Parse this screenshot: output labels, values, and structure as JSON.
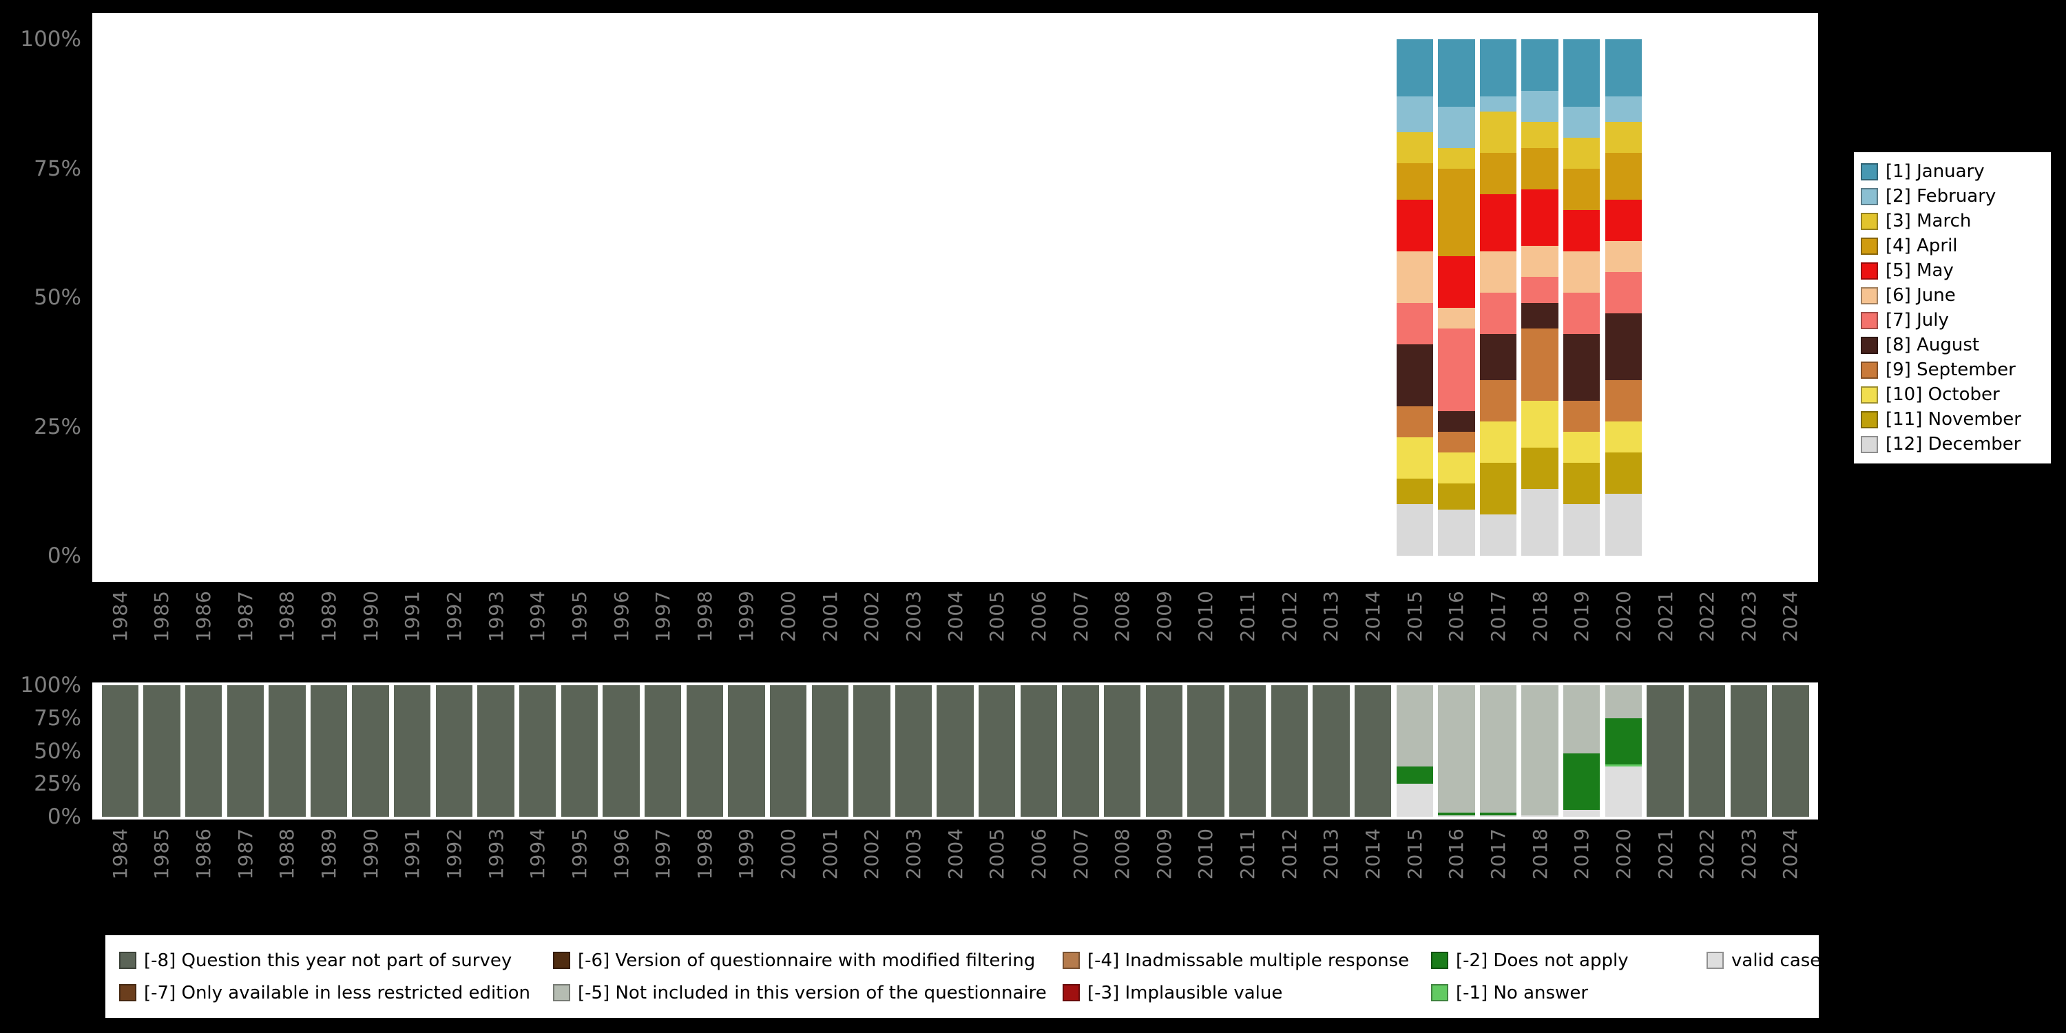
{
  "styles": {
    "background": "#000000",
    "panel_background": "#ffffff",
    "axis_text_color": "#7e7e7e",
    "legend_text_color": "#000000"
  },
  "chart_data": [
    {
      "type": "bar",
      "subtype": "stacked_percent",
      "title": "",
      "xlabel": "",
      "ylabel": "",
      "ylim": [
        0,
        100
      ],
      "grid": false,
      "legend_position": "right",
      "x_years": [
        1984,
        1985,
        1986,
        1987,
        1988,
        1989,
        1990,
        1991,
        1992,
        1993,
        1994,
        1995,
        1996,
        1997,
        1998,
        1999,
        2000,
        2001,
        2002,
        2003,
        2004,
        2005,
        2006,
        2007,
        2008,
        2009,
        2010,
        2011,
        2012,
        2013,
        2014,
        2015,
        2016,
        2017,
        2018,
        2019,
        2020,
        2021,
        2022,
        2023,
        2024
      ],
      "y_ticks": [
        {
          "label": "0%",
          "value": 0
        },
        {
          "label": "25%",
          "value": 25
        },
        {
          "label": "50%",
          "value": 50
        },
        {
          "label": "75%",
          "value": 75
        },
        {
          "label": "100%",
          "value": 100
        }
      ],
      "series": [
        {
          "name": "[1] January",
          "color": "#4798b2",
          "values_by_year": {
            "2015": 11,
            "2016": 13,
            "2017": 11,
            "2018": 10,
            "2019": 13,
            "2020": 11
          }
        },
        {
          "name": "[2] February",
          "color": "#8abfd2",
          "values_by_year": {
            "2015": 7,
            "2016": 8,
            "2017": 3,
            "2018": 6,
            "2019": 6,
            "2020": 5
          }
        },
        {
          "name": "[3] March",
          "color": "#e2c42d",
          "values_by_year": {
            "2015": 6,
            "2016": 4,
            "2017": 8,
            "2018": 5,
            "2019": 6,
            "2020": 6
          }
        },
        {
          "name": "[4] April",
          "color": "#d09b10",
          "values_by_year": {
            "2015": 7,
            "2016": 17,
            "2017": 8,
            "2018": 8,
            "2019": 8,
            "2020": 9
          }
        },
        {
          "name": "[5] May",
          "color": "#ec1212",
          "values_by_year": {
            "2015": 10,
            "2016": 10,
            "2017": 11,
            "2018": 11,
            "2019": 8,
            "2020": 8
          }
        },
        {
          "name": "[6] June",
          "color": "#f6c391",
          "values_by_year": {
            "2015": 10,
            "2016": 4,
            "2017": 8,
            "2018": 6,
            "2019": 8,
            "2020": 6
          }
        },
        {
          "name": "[7] July",
          "color": "#f4726c",
          "values_by_year": {
            "2015": 8,
            "2016": 16,
            "2017": 8,
            "2018": 5,
            "2019": 8,
            "2020": 8
          }
        },
        {
          "name": "[8] August",
          "color": "#46221c",
          "values_by_year": {
            "2015": 12,
            "2016": 4,
            "2017": 9,
            "2018": 5,
            "2019": 13,
            "2020": 13
          }
        },
        {
          "name": "[9] September",
          "color": "#c97a3a",
          "values_by_year": {
            "2015": 6,
            "2016": 4,
            "2017": 8,
            "2018": 14,
            "2019": 6,
            "2020": 8
          }
        },
        {
          "name": "[10] October",
          "color": "#f1de4e",
          "values_by_year": {
            "2015": 8,
            "2016": 6,
            "2017": 8,
            "2018": 9,
            "2019": 6,
            "2020": 6
          }
        },
        {
          "name": "[11] November",
          "color": "#bfa00a",
          "values_by_year": {
            "2015": 5,
            "2016": 5,
            "2017": 10,
            "2018": 8,
            "2019": 8,
            "2020": 8
          }
        },
        {
          "name": "[12] December",
          "color": "#d9d9d9",
          "values_by_year": {
            "2015": 10,
            "2016": 9,
            "2017": 8,
            "2018": 13,
            "2019": 10,
            "2020": 12
          }
        }
      ]
    },
    {
      "type": "bar",
      "subtype": "stacked_percent",
      "title": "",
      "xlabel": "",
      "ylabel": "",
      "ylim": [
        0,
        100
      ],
      "grid": false,
      "legend_position": "bottom",
      "x_years": [
        1984,
        1985,
        1986,
        1987,
        1988,
        1989,
        1990,
        1991,
        1992,
        1993,
        1994,
        1995,
        1996,
        1997,
        1998,
        1999,
        2000,
        2001,
        2002,
        2003,
        2004,
        2005,
        2006,
        2007,
        2008,
        2009,
        2010,
        2011,
        2012,
        2013,
        2014,
        2015,
        2016,
        2017,
        2018,
        2019,
        2020,
        2021,
        2022,
        2023,
        2024
      ],
      "y_ticks": [
        {
          "label": "0%",
          "value": 0
        },
        {
          "label": "25%",
          "value": 25
        },
        {
          "label": "50%",
          "value": 50
        },
        {
          "label": "75%",
          "value": 75
        },
        {
          "label": "100%",
          "value": 100
        }
      ],
      "series": [
        {
          "name": "[-8] Question this year not part of survey",
          "color": "#5b6457",
          "years_full": [
            1984,
            1985,
            1986,
            1987,
            1988,
            1989,
            1990,
            1991,
            1992,
            1993,
            1994,
            1995,
            1996,
            1997,
            1998,
            1999,
            2000,
            2001,
            2002,
            2003,
            2004,
            2005,
            2006,
            2007,
            2008,
            2009,
            2010,
            2011,
            2012,
            2013,
            2014,
            2021,
            2022,
            2023,
            2024
          ]
        },
        {
          "name": "[-7] Only available in less restricted edition",
          "color": "#6b3e1d"
        },
        {
          "name": "[-6] Version of questionnaire with modified filtering",
          "color": "#4f2c11"
        },
        {
          "name": "[-5] Not included in this version of the questionnaire",
          "color": "#b5bcb2",
          "values_by_year": {
            "2015": 62,
            "2016": 97,
            "2017": 97,
            "2018": 99,
            "2019": 52,
            "2020": 25
          }
        },
        {
          "name": "[-4] Inadmissable multiple response",
          "color": "#b57b4c"
        },
        {
          "name": "[-3] Implausible value",
          "color": "#a01010"
        },
        {
          "name": "[-2] Does not apply",
          "color": "#1a7d1a",
          "values_by_year": {
            "2015": 13,
            "2016": 2,
            "2017": 2,
            "2019": 43,
            "2020": 35
          }
        },
        {
          "name": "[-1] No answer",
          "color": "#62ca62",
          "values_by_year": {
            "2020": 2
          }
        },
        {
          "name": "valid cases",
          "color": "#dedede",
          "values_by_year": {
            "2015": 25,
            "2016": 1,
            "2017": 1,
            "2018": 1,
            "2019": 5,
            "2020": 38
          }
        }
      ]
    }
  ]
}
